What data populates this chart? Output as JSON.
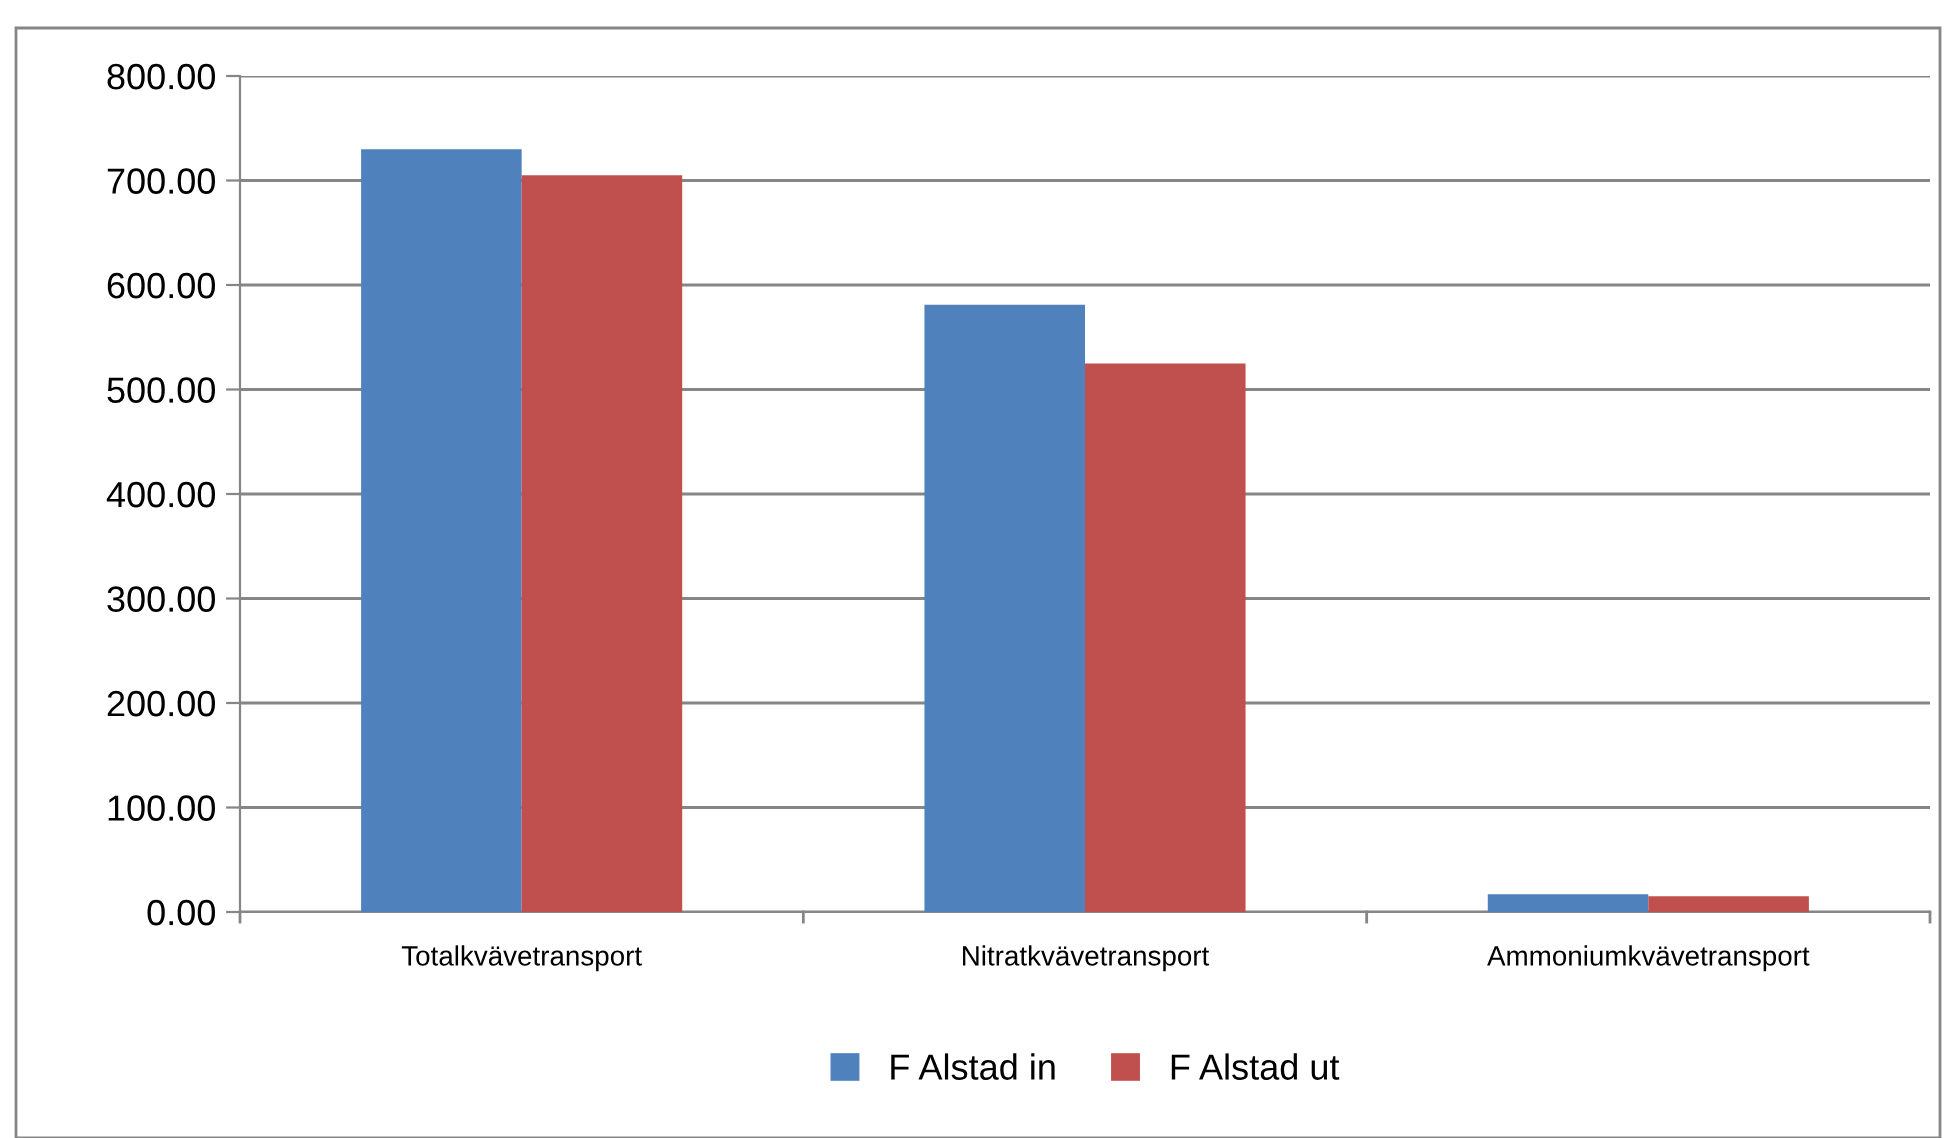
{
  "chart_data": {
    "type": "bar",
    "categories": [
      "Totalkvävetransport",
      "Nitratkvävetransport",
      "Ammoniumkvävetransport"
    ],
    "series": [
      {
        "name": "F Alstad in",
        "color": "#4f81bd",
        "values": [
          730,
          581,
          17
        ]
      },
      {
        "name": "F Alstad ut",
        "color": "#c0504d",
        "values": [
          705,
          525,
          15
        ]
      }
    ],
    "ylim": [
      0,
      800
    ],
    "yticks": [
      {
        "value": 0,
        "label": "0.00"
      },
      {
        "value": 100,
        "label": "100.00"
      },
      {
        "value": 200,
        "label": "200.00"
      },
      {
        "value": 300,
        "label": "300.00"
      },
      {
        "value": 400,
        "label": "400.00"
      },
      {
        "value": 500,
        "label": "500.00"
      },
      {
        "value": 600,
        "label": "600.00"
      },
      {
        "value": 700,
        "label": "700.00"
      },
      {
        "value": 800,
        "label": "800.00"
      }
    ],
    "grid": "y",
    "legend": "bottom"
  }
}
